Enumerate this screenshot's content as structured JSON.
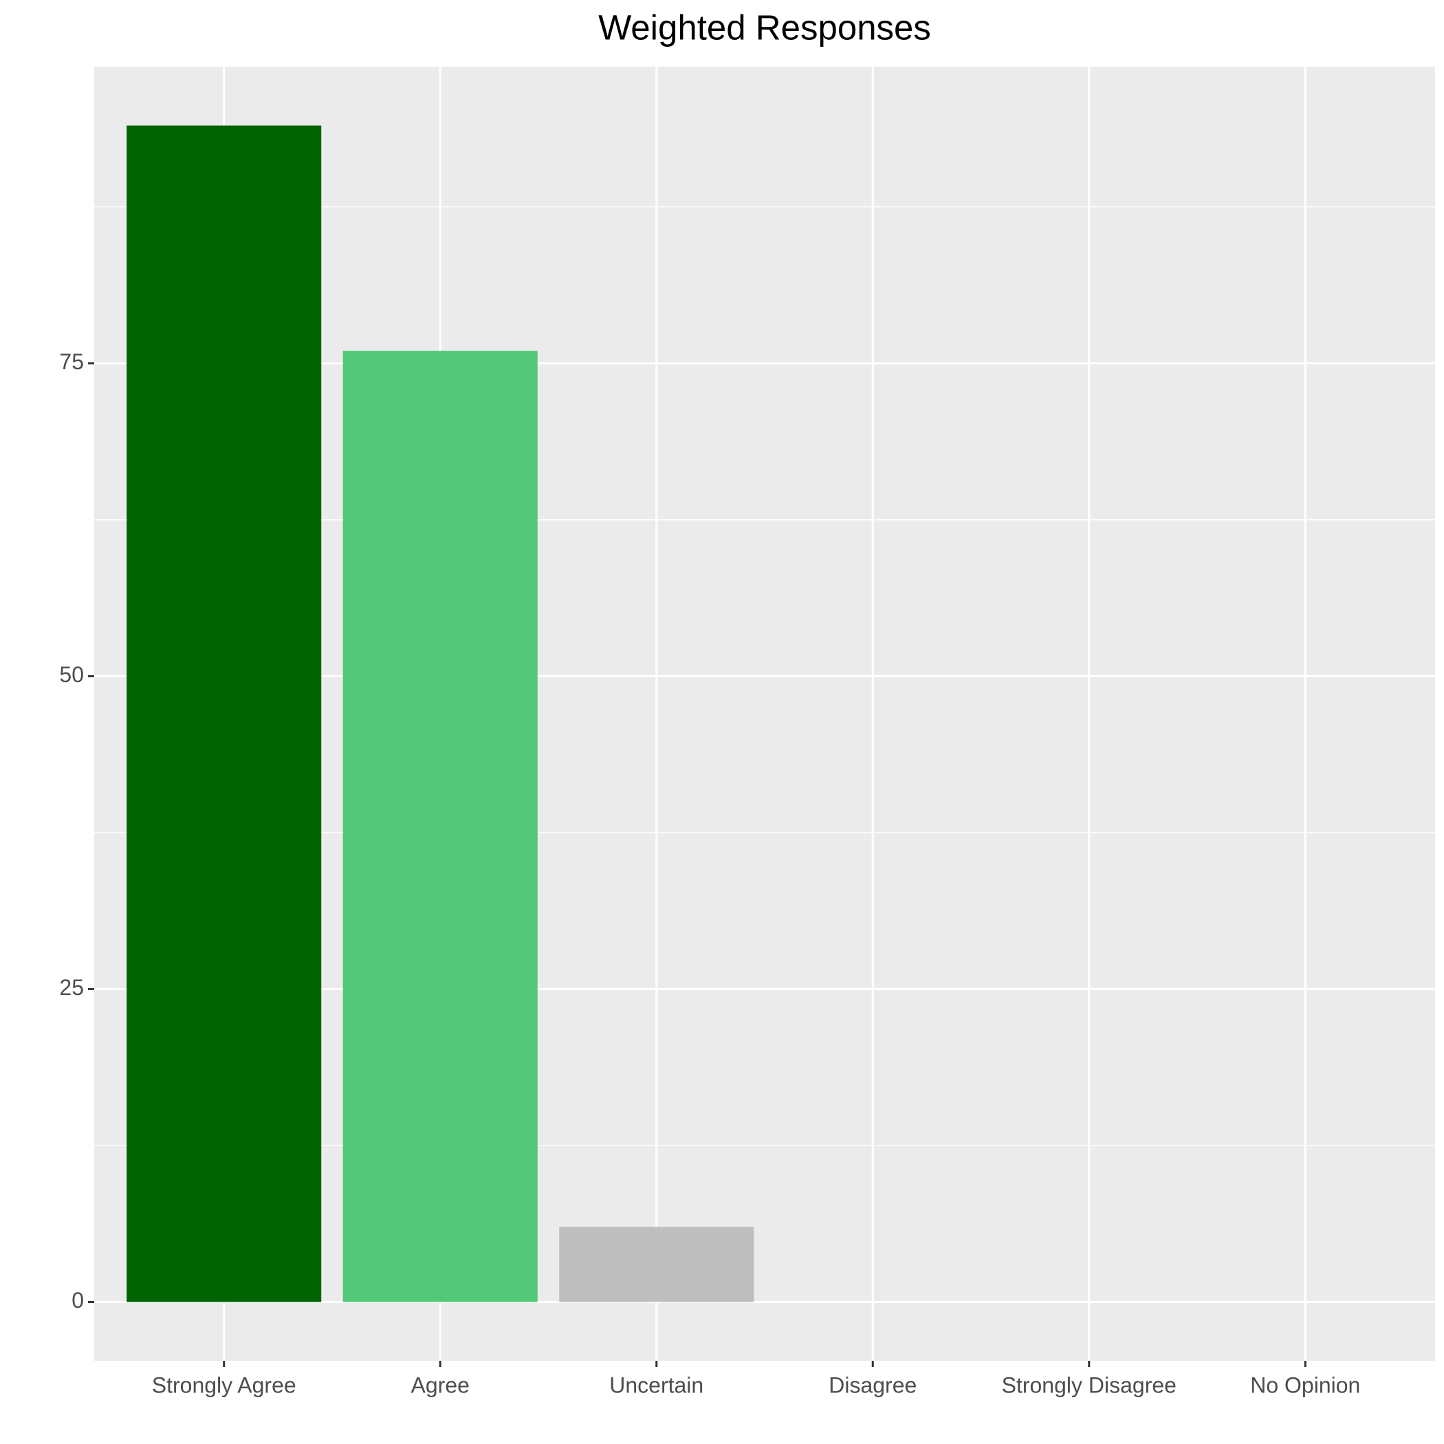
{
  "chart_data": {
    "type": "bar",
    "title": "Weighted Responses",
    "categories": [
      "Strongly Agree",
      "Agree",
      "Uncertain",
      "Disagree",
      "Strongly Disagree",
      "No Opinion"
    ],
    "values": [
      94,
      76,
      6,
      0,
      0,
      0
    ],
    "colors": [
      "#006400",
      "#52c878",
      "#bebebe",
      null,
      null,
      null
    ],
    "ylim": [
      -4.7,
      98.7
    ],
    "yticks": [
      0,
      25,
      50,
      75
    ],
    "grid": true
  }
}
